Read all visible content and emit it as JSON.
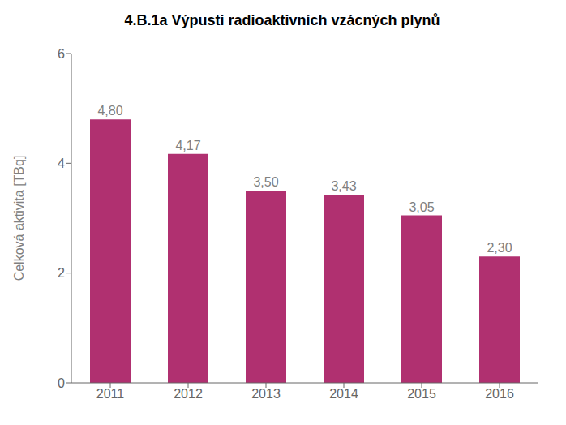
{
  "chart_data": {
    "type": "bar",
    "title": "4.B.1a Výpusti radioaktivních vzácných plynů",
    "categories": [
      "2011",
      "2012",
      "2013",
      "2014",
      "2015",
      "2016"
    ],
    "values": [
      4.8,
      4.17,
      3.5,
      3.43,
      3.05,
      2.3
    ],
    "value_labels": [
      "4,80",
      "4,17",
      "3,50",
      "3,43",
      "3,05",
      "2,30"
    ],
    "data_labels": true,
    "ylabel": "Celková aktivita [TBq]",
    "color": "#b03070",
    "ylim": [
      0,
      6
    ],
    "yticks": [
      0,
      2,
      4,
      6
    ],
    "grid": false
  }
}
